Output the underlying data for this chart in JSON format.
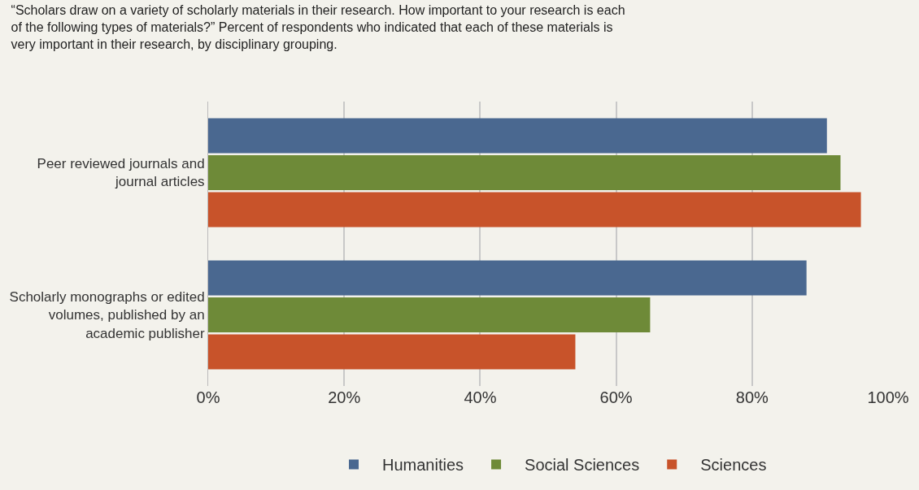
{
  "chart_data": {
    "type": "bar",
    "orientation": "horizontal",
    "title": "“Scholars draw on a variety of scholarly materials in their research. How important to your research is each of the following types of materials?” Percent of respondents who indicated that each of these materials is very important in their research, by disciplinary grouping.",
    "categories": [
      "Peer reviewed journals and journal articles",
      "Scholarly monographs or edited volumes, published by an academic publisher"
    ],
    "series": [
      {
        "name": "Humanities",
        "color": "#4a6890",
        "values": [
          91,
          88
        ]
      },
      {
        "name": "Social Sciences",
        "color": "#6e8a38",
        "values": [
          93,
          65
        ]
      },
      {
        "name": "Sciences",
        "color": "#c8532a",
        "values": [
          96,
          54
        ]
      }
    ],
    "xlim": [
      0,
      100
    ],
    "xticks": [
      {
        "value": 0,
        "label": "0%"
      },
      {
        "value": 20,
        "label": "20%"
      },
      {
        "value": 40,
        "label": "40%"
      },
      {
        "value": 60,
        "label": "60%"
      },
      {
        "value": 80,
        "label": "80%"
      },
      {
        "value": 100,
        "label": "100%"
      }
    ],
    "grid": "x",
    "legend": "bottom"
  }
}
